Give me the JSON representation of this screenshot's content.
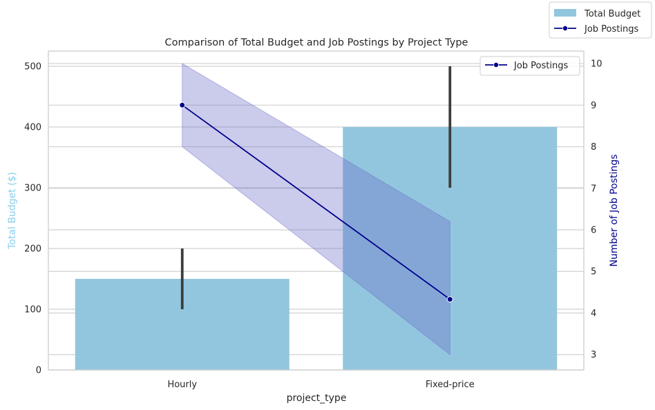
{
  "chart_data": {
    "type": "bar",
    "title": "Comparison of Total Budget and Job Postings by Project Type",
    "xlabel": "project_type",
    "ylabel": "Total Budget ($)",
    "y2label": "Number of Job Postings",
    "categories": [
      "Hourly",
      "Fixed-price"
    ],
    "ylim": [
      0,
      525
    ],
    "y_ticks": [
      0,
      100,
      200,
      300,
      400,
      500
    ],
    "y2lim": [
      2.63,
      10.3
    ],
    "y2_ticks": [
      3,
      4,
      5,
      6,
      7,
      8,
      9,
      10
    ],
    "series": [
      {
        "name": "Total Budget",
        "kind": "bar",
        "axis": "left",
        "values": [
          150,
          400
        ],
        "error_low": [
          100,
          300
        ],
        "error_high": [
          200,
          500
        ]
      },
      {
        "name": "Job Postings",
        "kind": "line",
        "axis": "right",
        "values": [
          9,
          4.33
        ],
        "ci_low": [
          8,
          3
        ],
        "ci_high": [
          10,
          6.2
        ]
      }
    ],
    "legends": {
      "figure": [
        "Total Budget",
        "Job Postings"
      ],
      "axes": [
        "Job Postings"
      ]
    },
    "grid": true,
    "colors": {
      "bar": "#92c6de",
      "line": "#00008b",
      "ci_band": "#6a6ac8",
      "errorbar": "#3c3c3c",
      "ylabel": "#87ceeb",
      "y2label": "#00008b",
      "grid": "#d0d0d0",
      "spine": "#cccccc",
      "text": "#262626"
    }
  }
}
